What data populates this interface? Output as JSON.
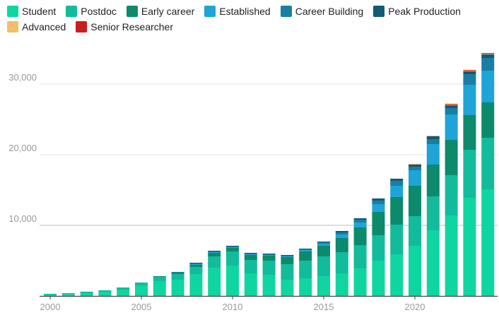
{
  "chart_data": {
    "type": "bar",
    "stacked": true,
    "title": "",
    "xlabel": "",
    "ylabel": "",
    "ylim": [
      0,
      35000
    ],
    "grid": true,
    "legend_position": "top-left",
    "x_ticks": [
      "2000",
      "2005",
      "2010",
      "2015",
      "2020"
    ],
    "y_ticks": [
      "10,000",
      "20,000",
      "30,000"
    ],
    "categories": [
      2000,
      2001,
      2002,
      2003,
      2004,
      2005,
      2006,
      2007,
      2008,
      2009,
      2010,
      2011,
      2012,
      2013,
      2014,
      2015,
      2016,
      2017,
      2018,
      2019,
      2020,
      2021,
      2022,
      2023,
      2024
    ],
    "series": [
      {
        "name": "Student",
        "color": "#0fd6a0",
        "values": [
          200,
          300,
          400,
          600,
          900,
          1500,
          2100,
          2300,
          3100,
          4000,
          4300,
          3200,
          3000,
          2300,
          2500,
          2800,
          3200,
          3900,
          5000,
          5900,
          7100,
          9300,
          11400,
          13900,
          15100
        ]
      },
      {
        "name": "Postdoc",
        "color": "#12bb9c",
        "values": [
          100,
          100,
          200,
          200,
          300,
          400,
          600,
          800,
          1000,
          1600,
          2000,
          1900,
          2000,
          2200,
          2500,
          2800,
          3000,
          3300,
          3600,
          4200,
          4200,
          4800,
          5700,
          6800,
          7300
        ]
      },
      {
        "name": "Early career",
        "color": "#0b8a6c",
        "values": [
          0,
          0,
          0,
          0,
          0,
          0,
          100,
          200,
          300,
          500,
          500,
          700,
          700,
          1000,
          1300,
          1500,
          2000,
          2500,
          3300,
          3900,
          4300,
          4500,
          5000,
          4900,
          5000
        ]
      },
      {
        "name": "Established",
        "color": "#1ea4d6",
        "values": [
          0,
          0,
          0,
          0,
          0,
          0,
          0,
          0,
          100,
          100,
          100,
          100,
          100,
          100,
          200,
          300,
          500,
          700,
          1100,
          1600,
          2200,
          2900,
          3600,
          4300,
          4500
        ]
      },
      {
        "name": "Career Building",
        "color": "#1a7ea3",
        "values": [
          0,
          0,
          0,
          0,
          0,
          0,
          0,
          100,
          100,
          100,
          100,
          100,
          100,
          100,
          100,
          200,
          300,
          400,
          500,
          700,
          500,
          700,
          900,
          1500,
          1800
        ]
      },
      {
        "name": "Peak Production",
        "color": "#145a74",
        "values": [
          0,
          0,
          0,
          0,
          0,
          0,
          0,
          0,
          100,
          100,
          100,
          100,
          100,
          100,
          100,
          100,
          200,
          200,
          300,
          300,
          300,
          400,
          400,
          400,
          500
        ]
      },
      {
        "name": "Advanced",
        "color": "#f5bd67",
        "values": [
          0,
          0,
          0,
          0,
          0,
          0,
          0,
          0,
          0,
          0,
          0,
          0,
          0,
          0,
          0,
          0,
          0,
          0,
          0,
          0,
          100,
          100,
          100,
          100,
          100
        ]
      },
      {
        "name": "Senior Researcher",
        "color": "#c81e1e",
        "values": [
          0,
          0,
          0,
          0,
          0,
          0,
          0,
          0,
          0,
          0,
          0,
          0,
          0,
          0,
          0,
          0,
          0,
          0,
          0,
          0,
          0,
          0,
          100,
          100,
          100
        ]
      }
    ]
  }
}
